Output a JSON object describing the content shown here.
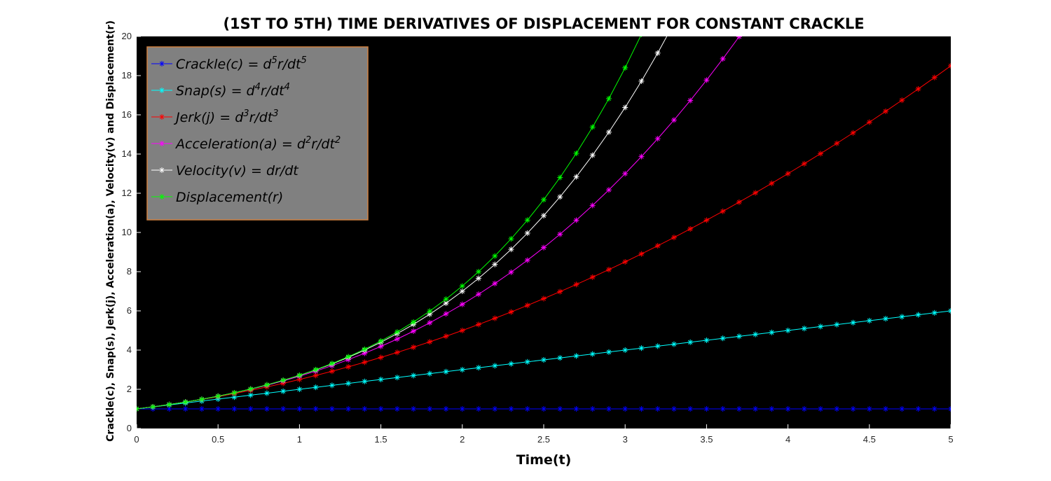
{
  "chart_data": {
    "type": "line",
    "title": "(1ST TO 5TH) TIME DERIVATIVES OF DISPLACEMENT FOR CONSTANT CRACKLE",
    "xlabel": "Time(t)",
    "ylabel": "Crackle(c), Snap(s), Jerk(j), Acceleration(a), Velocity(v) and Displacement(r)",
    "xlim": [
      0,
      5
    ],
    "ylim": [
      0,
      20
    ],
    "xticks": [
      "0",
      "0.5",
      "1",
      "1.5",
      "2",
      "2.5",
      "3",
      "3.5",
      "4",
      "4.5",
      "5"
    ],
    "yticks": [
      "0",
      "2",
      "4",
      "6",
      "8",
      "10",
      "12",
      "14",
      "16",
      "18",
      "20"
    ],
    "x_start": 0,
    "x_step": 0.1,
    "x_end": 5,
    "marker": "asterisk",
    "grid": false,
    "plot_background": "#000000",
    "legend": {
      "position": "top-left",
      "background": "#808080",
      "border": "#d08040"
    },
    "series": [
      {
        "key": "crackle",
        "color": "#0000ff",
        "label_main": "Crackle(c) = d",
        "sup1": "5",
        "label_mid": "r/dt",
        "sup2": "5",
        "formula": "1"
      },
      {
        "key": "snap",
        "color": "#00ffff",
        "label_main": "Snap(s) = d",
        "sup1": "4",
        "label_mid": "r/dt",
        "sup2": "4",
        "formula": "1 + t"
      },
      {
        "key": "jerk",
        "color": "#ff0000",
        "label_main": "Jerk(j) = d",
        "sup1": "3",
        "label_mid": "r/dt",
        "sup2": "3",
        "formula": "1 + t + t^2/2"
      },
      {
        "key": "acceleration",
        "color": "#ff00ff",
        "label_main": "Acceleration(a) = d",
        "sup1": "2",
        "label_mid": "r/dt",
        "sup2": "2",
        "formula": "1 + t + t^2/2 + t^3/6"
      },
      {
        "key": "velocity",
        "color": "#ffffff",
        "label_main": "Velocity(v) = dr/dt",
        "sup1": "",
        "label_mid": "",
        "sup2": "",
        "formula": "1 + t + t^2/2 + t^3/6 + t^4/24"
      },
      {
        "key": "displacement",
        "color": "#00ff00",
        "label_main": "Displacement(r)",
        "sup1": "",
        "label_mid": "",
        "sup2": "",
        "formula": "1 + t + t^2/2 + t^3/6 + t^4/24 + t^5/120"
      }
    ]
  }
}
